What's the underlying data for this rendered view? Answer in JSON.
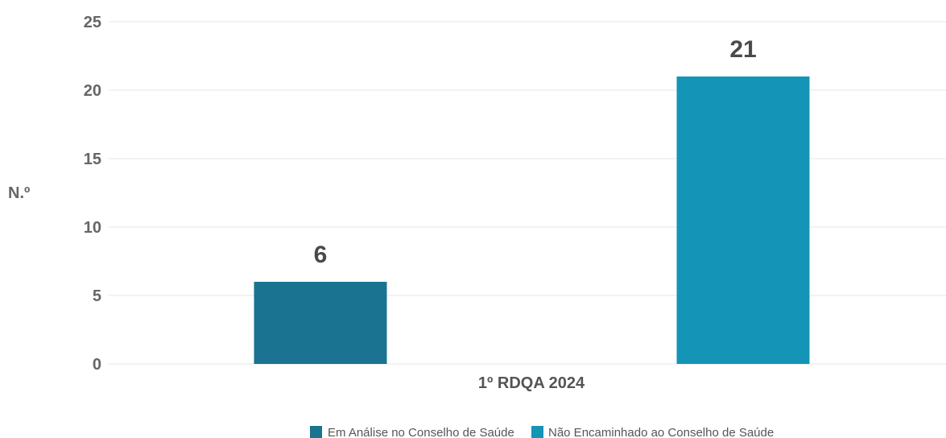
{
  "chart_data": {
    "type": "bar",
    "categories": [
      "1º RDQA 2024"
    ],
    "series": [
      {
        "name": "Em Análise no Conselho de Saúde",
        "values": [
          6
        ],
        "color": "#1a7390"
      },
      {
        "name": "Não Encaminhado ao Conselho de Saúde",
        "values": [
          21
        ],
        "color": "#1494b6"
      }
    ],
    "ylabel": "N.º",
    "xlabel": "",
    "title": "",
    "ylim": [
      0,
      25
    ],
    "yticks": [
      0,
      5,
      10,
      15,
      20,
      25
    ],
    "grid": true,
    "legend_position": "bottom-center",
    "data_labels": true
  }
}
